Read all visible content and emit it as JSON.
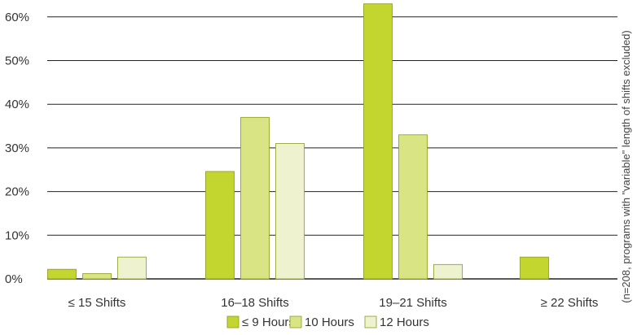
{
  "chart_data": {
    "type": "bar",
    "categories": [
      "≤ 15 Shifts",
      "16–18 Shifts",
      "19–21 Shifts",
      "≥ 22 Shifts"
    ],
    "series": [
      {
        "name": "≤ 9 Hours",
        "color": "#c3d52f",
        "values": [
          2.2,
          24.6,
          63.0,
          5.0
        ]
      },
      {
        "name": "10 Hours",
        "color": "#d9e585",
        "values": [
          1.2,
          37.0,
          33.0,
          null
        ]
      },
      {
        "name": "12 Hours",
        "color": "#eef2cf",
        "values": [
          5.0,
          31.0,
          3.3,
          null
        ]
      }
    ],
    "y_ticks": [
      "0%",
      "10%",
      "20%",
      "30%",
      "40%",
      "50%",
      "60%"
    ],
    "ylim": [
      0,
      65
    ],
    "grid": true,
    "legend_position": "bottom-center",
    "note": "(n=208, programs with \"variable\" length of shifts excluded)"
  }
}
